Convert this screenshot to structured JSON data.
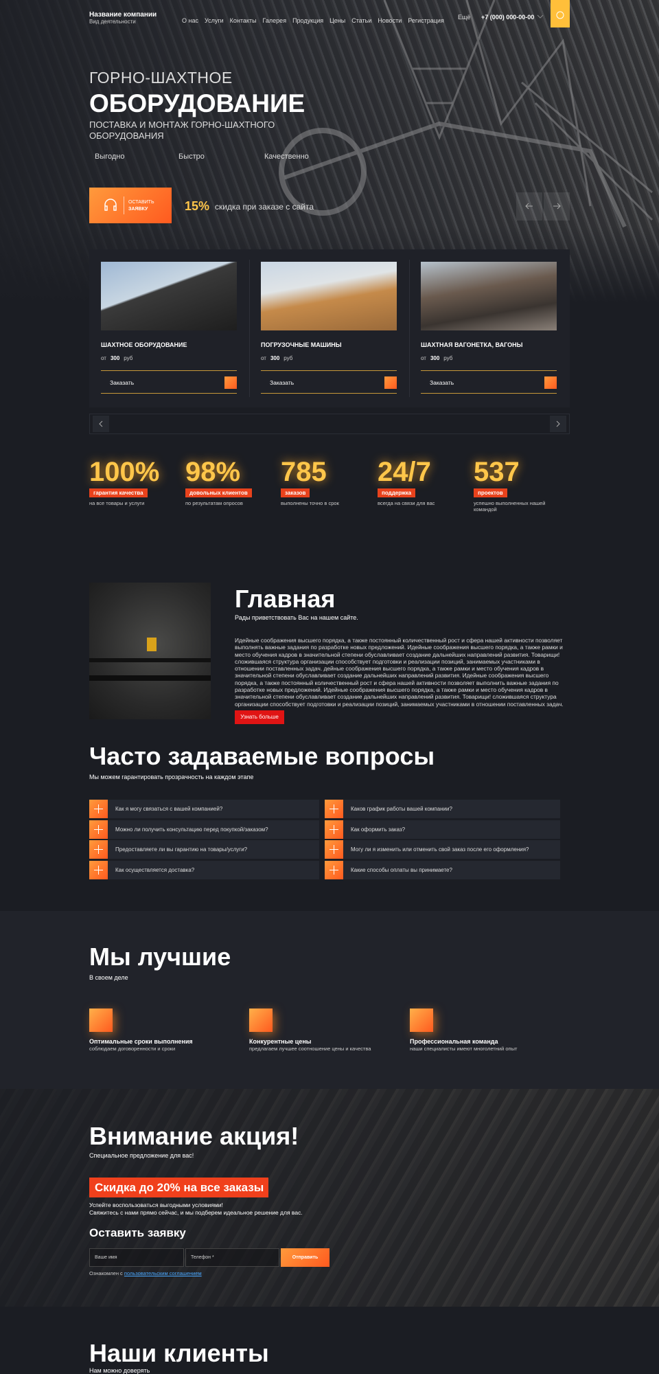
{
  "header": {
    "company": "Название компании",
    "tagline": "Вид деятельности",
    "nav": [
      "О нас",
      "Услуги",
      "Контакты",
      "Галерея",
      "Продукция",
      "Цены",
      "Статьи",
      "Новости",
      "Регистрация"
    ],
    "more": "Ещё",
    "phone": "+7 (000) 000-00-00"
  },
  "hero": {
    "title_top": "ГОРНО-ШАХТНОЕ",
    "title_main": "ОБОРУДОВАНИЕ",
    "subtitle": "ПОСТАВКА И МОНТАЖ ГОРНО-ШАХТНОГО ОБОРУДОВАНИЯ",
    "features": [
      "Выгодно",
      "Быстро",
      "Качественно"
    ],
    "button_top": "ОСТАВИТЬ",
    "button_bottom": "ЗАЯВКУ",
    "discount": "15%",
    "discount_text": "скидка при заказе с сайта"
  },
  "cards": [
    {
      "title": "ШАХТНОЕ ОБОРУДОВАНИЕ",
      "price_prefix": "от",
      "price": "300",
      "currency": "руб",
      "order": "Заказать"
    },
    {
      "title": "ПОГРУЗОЧНЫЕ МАШИНЫ",
      "price_prefix": "от",
      "price": "300",
      "currency": "руб",
      "order": "Заказать"
    },
    {
      "title": "ШАХТНАЯ ВАГОНЕТКА, ВАГОНЫ",
      "price_prefix": "от",
      "price": "300",
      "currency": "руб",
      "order": "Заказать"
    }
  ],
  "stats": [
    {
      "number": "100%",
      "label": "гарантия качества",
      "text": "на все товары и услуги"
    },
    {
      "number": "98%",
      "label": "довольных клиентов",
      "text": "по результатам опросов"
    },
    {
      "number": "785",
      "label": "заказов",
      "text": "выполнены точно в срок"
    },
    {
      "number": "24/7",
      "label": "поддержка",
      "text": "всегда на связи для вас"
    },
    {
      "number": "537",
      "label": "проектов",
      "text": "успешно выполненных нашей командой"
    }
  ],
  "about": {
    "title": "Главная",
    "subtitle": "Рады приветствовать Вас на нашем сайте.",
    "text": "Идейные соображения высшего порядка, а также постоянный количественный рост и сфера нашей активности позволяет выполнять важные задания по разработке новых предложений. Идейные соображения высшего порядка, а также рамки и место обучения кадров в значительной степени обуславливает создание дальнейших направлений развития. Товарищи! сложившаяся структура организации способствует подготовки и реализации позиций, занимаемых участниками в отношении поставленных задач. дейные соображения высшего порядка, а также рамки и место обучения кадров в значительной степени обуславливает создание дальнейших направлений развития. Идейные соображения высшего порядка, а также постоянный количественный рост и сфера нашей активности позволяет выполнить важные задания по разработке новых предложений. Идейные соображения высшего порядка, а также рамки и место обучения кадров в значительной степени обуславливает создание дальнейших направлений развития. Товарищи! сложившаяся структура организации способствует подготовки и реализации позиций, занимаемых участниками в отношении поставленных задач.",
    "button": "Узнать больше"
  },
  "faq": {
    "title": "Часто задаваемые вопросы",
    "subtitle": "Мы можем гарантировать прозрачность на каждом этапе",
    "questions": [
      "Как я могу связаться с вашей компанией?",
      "Каков график работы вашей компании?",
      "Можно ли получить консультацию перед покупкой/заказом?",
      "Как оформить заказ?",
      "Предоставляете ли вы гарантию на товары/услуги?",
      "Могу ли я изменить или отменить свой заказ после его оформления?",
      "Как осуществляется доставка?",
      "Какие способы оплаты вы принимаете?"
    ]
  },
  "advantages": {
    "title": "Мы лучшие",
    "subtitle": "В своем деле",
    "items": [
      {
        "title": "Оптимальные сроки выполнения",
        "text": "соблюдаем договоренности и сроки"
      },
      {
        "title": "Конкурентные цены",
        "text": "предлагаем лучшее соотношение цены и качества"
      },
      {
        "title": "Профессиональная команда",
        "text": "наши специалисты имеют многолетний опыт"
      }
    ]
  },
  "promo": {
    "title": "Внимание акция!",
    "subtitle": "Специальное предложение для вас!",
    "badge": "Скидка до 20% на все заказы",
    "line1": "Успейте воспользоваться выгодными условиями!",
    "line2": "Свяжитесь с нами прямо сейчас, и мы подберем идеальное решение для вас.",
    "form_title": "Оставить заявку",
    "name_placeholder": "Ваше имя",
    "phone_placeholder": "Телефон *",
    "submit": "Отправить",
    "consent": "Ознакомлен с",
    "consent_link": "пользовательским соглашением"
  },
  "clients": {
    "title": "Наши клиенты",
    "subtitle": "Нам можно доверять"
  }
}
